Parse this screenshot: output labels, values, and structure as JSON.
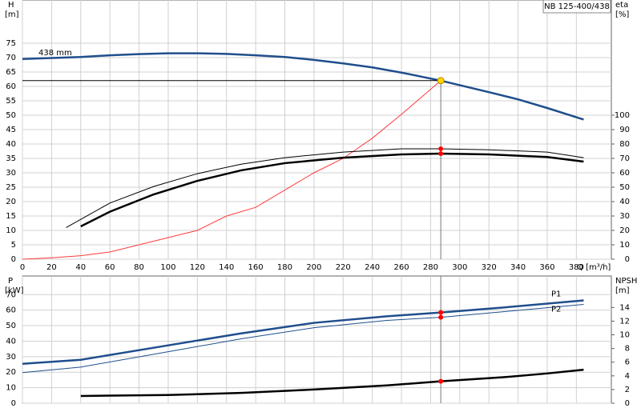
{
  "title": "NB 125-400/438",
  "chart_data": [
    {
      "type": "line",
      "xlabel": "Q [m³/h]",
      "ylabel": "H",
      "yunit": "[m]",
      "y2label": "eta",
      "y2unit": "[%]",
      "xlim": [
        0,
        404
      ],
      "xticks": [
        0,
        20,
        40,
        60,
        80,
        100,
        120,
        140,
        160,
        180,
        200,
        220,
        240,
        260,
        280,
        300,
        320,
        340,
        360,
        380
      ],
      "ylim": [
        0,
        90
      ],
      "yticks": [
        0,
        5,
        10,
        15,
        20,
        25,
        30,
        35,
        40,
        45,
        50,
        55,
        60,
        65,
        70,
        75
      ],
      "y2lim": [
        0,
        180
      ],
      "y2ticks": [
        0,
        10,
        20,
        30,
        40,
        50,
        60,
        70,
        80,
        90,
        100
      ],
      "grid": true,
      "operating_point": {
        "x": 287
      },
      "series": [
        {
          "name": "438 mm",
          "color": "#1f4e8c",
          "style": "thick",
          "axis": "y",
          "marker_color": "#ffd700",
          "x": [
            0,
            40,
            60,
            80,
            100,
            120,
            140,
            160,
            180,
            200,
            220,
            240,
            260,
            287,
            320,
            340,
            360,
            385
          ],
          "values": [
            69.5,
            70.2,
            70.8,
            71.2,
            71.5,
            71.5,
            71.3,
            70.8,
            70.2,
            69.2,
            68,
            66.6,
            64.8,
            62,
            58,
            55.5,
            52.5,
            48.5
          ]
        },
        {
          "color": "#ff3b3b",
          "style": "thin",
          "axis": "y",
          "x": [
            0,
            20,
            40,
            60,
            88,
            120,
            140,
            160,
            180,
            200,
            220,
            240,
            260,
            287
          ],
          "values": [
            0,
            0.5,
            1.2,
            2.5,
            6,
            10,
            15,
            18,
            24,
            30,
            35,
            42,
            50.3,
            62
          ]
        },
        {
          "color": "#000000",
          "style": "thin",
          "axis": "y2",
          "marker_color": "#ff0000",
          "x": [
            30,
            60,
            90,
            120,
            150,
            180,
            220,
            260,
            287,
            320,
            360,
            385
          ],
          "values": [
            22,
            39,
            50.5,
            59.4,
            66,
            70.5,
            74.4,
            76.7,
            76.7,
            76,
            74.4,
            70.5
          ]
        },
        {
          "color": "#000000",
          "style": "thick",
          "axis": "y2",
          "marker_color": "#ff0000",
          "x": [
            40,
            60,
            90,
            120,
            150,
            180,
            220,
            260,
            287,
            320,
            360,
            385
          ],
          "values": [
            22.8,
            33,
            45,
            54.4,
            61.7,
            66.7,
            70.5,
            72.8,
            73.3,
            72.8,
            71,
            67.8
          ]
        }
      ]
    },
    {
      "type": "line",
      "ylabel": "P",
      "yunit": "[kW]",
      "y2label": "NPSH",
      "y2unit": "[m]",
      "xlim": [
        0,
        404
      ],
      "ylim": [
        0,
        82
      ],
      "yticks": [
        0,
        10,
        20,
        30,
        40,
        50,
        60,
        70
      ],
      "y2lim": [
        0,
        18.6
      ],
      "y2ticks": [
        0,
        2,
        4,
        6,
        8,
        10,
        12,
        14
      ],
      "grid": true,
      "series": [
        {
          "name": "P1",
          "color": "#1f4e8c",
          "style": "thick",
          "axis": "y",
          "marker_color": "#ff0000",
          "x": [
            0,
            40,
            100,
            150,
            200,
            250,
            287,
            330,
            385
          ],
          "values": [
            25.4,
            28,
            37.3,
            45,
            51.8,
            56,
            58.5,
            61.7,
            66.3
          ]
        },
        {
          "name": "P2",
          "color": "#1f4e8c",
          "style": "thin",
          "axis": "y",
          "marker_color": "#ff0000",
          "x": [
            0,
            40,
            100,
            150,
            200,
            250,
            287,
            330,
            385
          ],
          "values": [
            19.7,
            23.3,
            33.2,
            41.5,
            48.7,
            53.4,
            55.4,
            59,
            63.7
          ]
        },
        {
          "color": "#000000",
          "style": "thick",
          "axis": "y2",
          "marker_color": "#ff0000",
          "x": [
            40,
            100,
            150,
            200,
            250,
            287,
            330,
            360,
            385
          ],
          "values": [
            1.06,
            1.2,
            1.5,
            2.0,
            2.6,
            3.2,
            3.8,
            4.35,
            4.9
          ]
        }
      ]
    }
  ]
}
